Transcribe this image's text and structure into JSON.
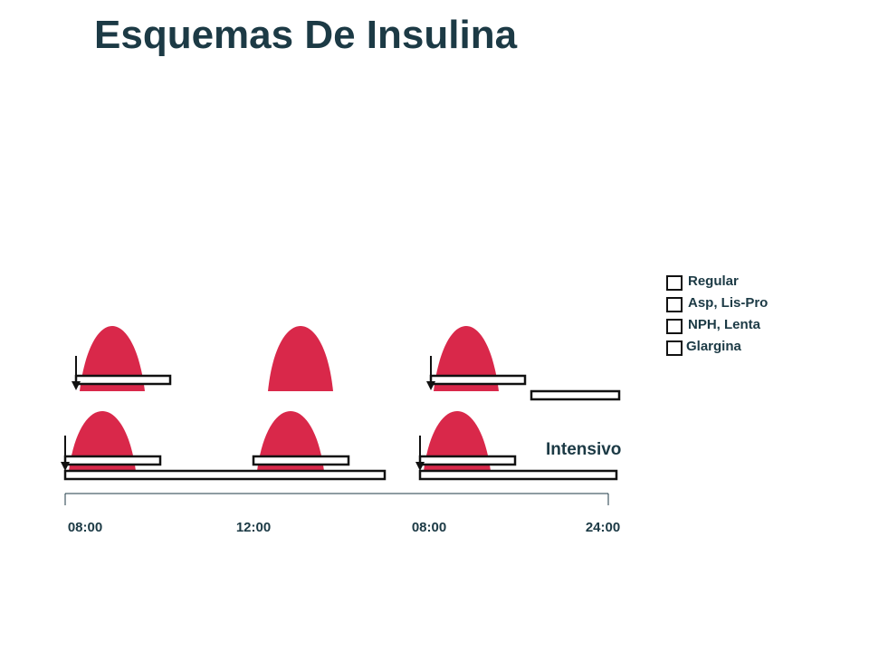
{
  "title": "Esquemas De Insulina",
  "legend": [
    "Regular",
    "Asp, Lis-Pro",
    "NPH, Lenta",
    "Glargina"
  ],
  "scheme_label": "Intensivo",
  "time_axis": {
    "ticks": [
      "08:00",
      "12:00",
      "08:00",
      "24:00"
    ]
  },
  "colors": {
    "peak": "#d9284a",
    "title": "#1c3a45",
    "axis": "#1c3a45",
    "bar_border": "#111111"
  }
}
